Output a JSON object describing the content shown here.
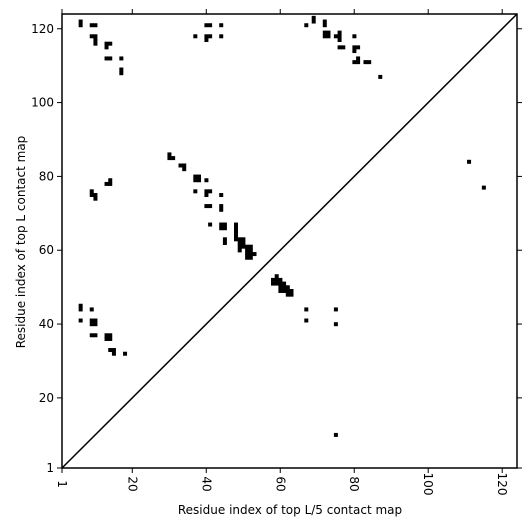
{
  "chart_data": {
    "type": "heatmap",
    "xlabel": "Residue index of top L/5 contact map",
    "ylabel": "Residue index of top L contact map",
    "xlim": [
      1,
      124
    ],
    "ylim": [
      1,
      124
    ],
    "x_ticks": [
      {
        "value": 1,
        "label": "1"
      },
      {
        "value": 20,
        "label": "20"
      },
      {
        "value": 40,
        "label": "40"
      },
      {
        "value": 60,
        "label": "60"
      },
      {
        "value": 80,
        "label": "80"
      },
      {
        "value": 100,
        "label": "100"
      },
      {
        "value": 120,
        "label": "120"
      }
    ],
    "y_ticks": [
      {
        "value": 1,
        "label": "1"
      },
      {
        "value": 20,
        "label": "20"
      },
      {
        "value": 40,
        "label": "40"
      },
      {
        "value": 60,
        "label": "60"
      },
      {
        "value": 80,
        "label": "80"
      },
      {
        "value": 100,
        "label": "100"
      },
      {
        "value": 120,
        "label": "120"
      }
    ],
    "diagonal": {
      "from": [
        1,
        1
      ],
      "to": [
        124,
        124
      ]
    },
    "upper_contacts_top_L": [
      [
        6,
        122
      ],
      [
        6,
        121
      ],
      [
        9,
        121
      ],
      [
        10,
        121
      ],
      [
        9,
        118
      ],
      [
        10,
        118
      ],
      [
        10,
        117
      ],
      [
        10,
        116
      ],
      [
        13,
        116
      ],
      [
        14,
        116
      ],
      [
        13,
        115
      ],
      [
        13,
        112
      ],
      [
        14,
        112
      ],
      [
        17,
        112
      ],
      [
        17,
        109
      ],
      [
        17,
        108
      ],
      [
        37,
        118
      ],
      [
        40,
        121
      ],
      [
        41,
        121
      ],
      [
        44,
        121
      ],
      [
        40,
        118
      ],
      [
        41,
        118
      ],
      [
        40,
        117
      ],
      [
        44,
        118
      ],
      [
        67,
        121
      ],
      [
        69,
        123
      ],
      [
        69,
        122
      ],
      [
        72,
        122
      ],
      [
        72,
        121
      ],
      [
        72,
        119
      ],
      [
        73,
        119
      ],
      [
        72,
        118
      ],
      [
        73,
        118
      ],
      [
        75,
        118
      ],
      [
        76,
        119
      ],
      [
        76,
        118
      ],
      [
        76,
        117
      ],
      [
        76,
        115
      ],
      [
        77,
        115
      ],
      [
        80,
        118
      ],
      [
        80,
        115
      ],
      [
        81,
        115
      ],
      [
        80,
        114
      ],
      [
        81,
        112
      ],
      [
        80,
        111
      ],
      [
        81,
        111
      ],
      [
        83,
        111
      ],
      [
        84,
        111
      ],
      [
        87,
        107
      ],
      [
        111,
        84
      ],
      [
        115,
        77
      ],
      [
        30,
        86
      ],
      [
        30,
        85
      ],
      [
        31,
        85
      ],
      [
        33,
        83
      ],
      [
        34,
        83
      ],
      [
        34,
        82
      ],
      [
        37,
        80
      ],
      [
        38,
        80
      ],
      [
        37,
        79
      ],
      [
        38,
        79
      ],
      [
        40,
        79
      ],
      [
        37,
        76
      ],
      [
        40,
        76
      ],
      [
        41,
        76
      ],
      [
        40,
        75
      ],
      [
        44,
        75
      ],
      [
        40,
        72
      ],
      [
        41,
        72
      ],
      [
        44,
        72
      ],
      [
        44,
        71
      ],
      [
        41,
        67
      ],
      [
        44,
        67
      ],
      [
        45,
        67
      ],
      [
        44,
        66
      ],
      [
        45,
        66
      ],
      [
        48,
        67
      ],
      [
        48,
        66
      ],
      [
        48,
        65
      ],
      [
        48,
        64
      ],
      [
        48,
        63
      ],
      [
        49,
        63
      ],
      [
        50,
        63
      ],
      [
        45,
        63
      ],
      [
        45,
        62
      ],
      [
        49,
        62
      ],
      [
        50,
        62
      ],
      [
        52,
        61
      ],
      [
        51,
        61
      ],
      [
        49,
        61
      ],
      [
        50,
        61
      ],
      [
        49,
        60
      ],
      [
        51,
        60
      ],
      [
        52,
        60
      ],
      [
        51,
        59
      ],
      [
        52,
        59
      ],
      [
        53,
        59
      ],
      [
        51,
        58
      ],
      [
        52,
        58
      ],
      [
        9,
        76
      ],
      [
        9,
        75
      ],
      [
        10,
        75
      ],
      [
        10,
        74
      ],
      [
        13,
        78
      ],
      [
        14,
        78
      ],
      [
        14,
        79
      ]
    ],
    "lower_contacts_top_L5": [
      [
        58,
        52
      ],
      [
        59,
        52
      ],
      [
        59,
        53
      ],
      [
        60,
        52
      ],
      [
        58,
        51
      ],
      [
        59,
        51
      ],
      [
        60,
        51
      ],
      [
        61,
        51
      ],
      [
        60,
        50
      ],
      [
        61,
        50
      ],
      [
        62,
        50
      ],
      [
        60,
        49
      ],
      [
        61,
        49
      ],
      [
        62,
        49
      ],
      [
        63,
        49
      ],
      [
        62,
        48
      ],
      [
        63,
        48
      ],
      [
        67,
        44
      ],
      [
        67,
        41
      ],
      [
        75,
        44
      ],
      [
        75,
        40
      ],
      [
        75,
        10
      ],
      [
        6,
        45
      ],
      [
        6,
        44
      ],
      [
        6,
        41
      ],
      [
        9,
        44
      ],
      [
        9,
        41
      ],
      [
        10,
        41
      ],
      [
        9,
        40
      ],
      [
        10,
        40
      ],
      [
        9,
        37
      ],
      [
        10,
        37
      ],
      [
        13,
        37
      ],
      [
        14,
        37
      ],
      [
        13,
        36
      ],
      [
        14,
        36
      ],
      [
        14,
        33
      ],
      [
        15,
        33
      ],
      [
        15,
        32
      ],
      [
        18,
        32
      ]
    ]
  }
}
